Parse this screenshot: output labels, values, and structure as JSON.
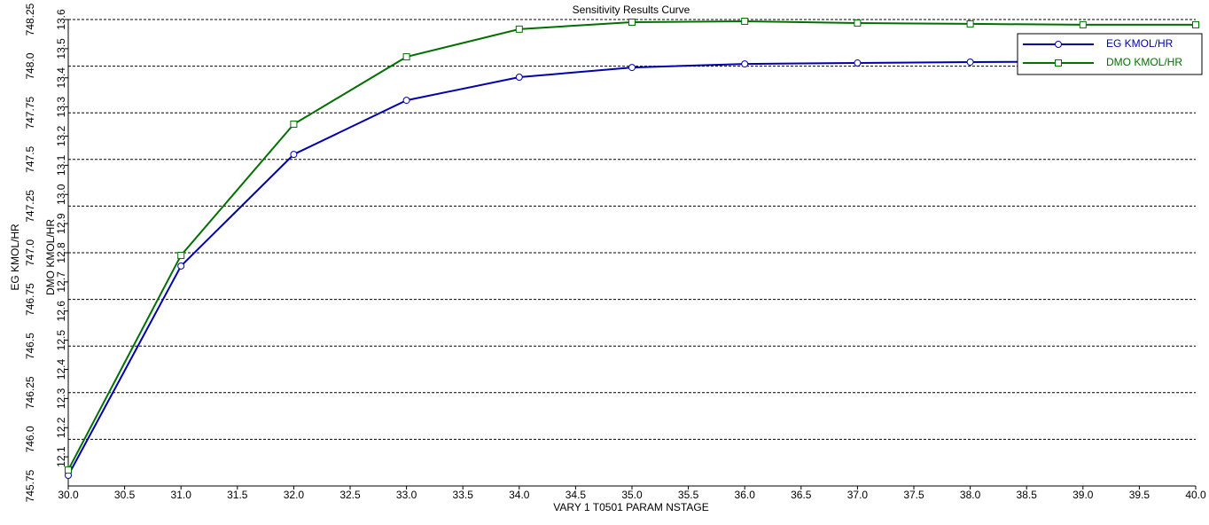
{
  "chart_data": {
    "type": "line",
    "title": "Sensitivity Results Curve",
    "x_label": "VARY   1 T0501 PARAM NSTAGE",
    "y_label": "EG KMOL/HR",
    "y2_label": "DMO KMOL/HR",
    "x": [
      30,
      31,
      32,
      33,
      34,
      35,
      36,
      37,
      38,
      39,
      40
    ],
    "xlim": [
      30,
      40
    ],
    "xticks": [
      {
        "value": 30,
        "label": "30.0"
      },
      30.5,
      {
        "value": 31,
        "label": "31.0"
      },
      31.5,
      {
        "value": 32,
        "label": "32.0"
      },
      32.5,
      {
        "value": 33,
        "label": "33.0"
      },
      33.5,
      {
        "value": 34,
        "label": "34.0"
      },
      34.5,
      {
        "value": 35,
        "label": "35.0"
      },
      35.5,
      {
        "value": 36,
        "label": "36.0"
      },
      36.5,
      {
        "value": 37,
        "label": "37.0"
      },
      37.5,
      {
        "value": 38,
        "label": "38.0"
      },
      38.5,
      {
        "value": 39,
        "label": "39.0"
      },
      39.5,
      {
        "value": 40,
        "label": "40.0"
      }
    ],
    "ylim": [
      745.75,
      748.25
    ],
    "yticks": [
      745.75,
      {
        "value": 746,
        "label": "746.0"
      },
      746.25,
      746.5,
      746.75,
      {
        "value": 747,
        "label": "747.0"
      },
      747.25,
      747.5,
      747.75,
      {
        "value": 748,
        "label": "748.0"
      },
      748.25
    ],
    "y2lim": [
      12.0,
      13.6
    ],
    "y2ticks": [
      12.1,
      12.2,
      12.3,
      12.4,
      12.5,
      12.6,
      12.7,
      12.8,
      12.9,
      {
        "value": 13,
        "label": "13.0"
      },
      13.1,
      13.2,
      13.3,
      13.4,
      13.5,
      13.6
    ],
    "grid": true,
    "legend": "upper right",
    "series": [
      {
        "name": "EG KMOL/HR",
        "color": "#0000b0",
        "marker": "circle",
        "axis": "y",
        "values": [
          745.807,
          746.929,
          747.527,
          747.817,
          747.941,
          747.993,
          748.012,
          748.017,
          748.022,
          748.024,
          748.027
        ]
      },
      {
        "name": "DMO KMOL/HR",
        "color": "#007000",
        "marker": "square",
        "axis": "y2",
        "values": [
          12.055,
          12.791,
          13.241,
          13.472,
          13.567,
          13.591,
          13.594,
          13.588,
          13.585,
          13.582,
          13.582
        ]
      }
    ]
  }
}
